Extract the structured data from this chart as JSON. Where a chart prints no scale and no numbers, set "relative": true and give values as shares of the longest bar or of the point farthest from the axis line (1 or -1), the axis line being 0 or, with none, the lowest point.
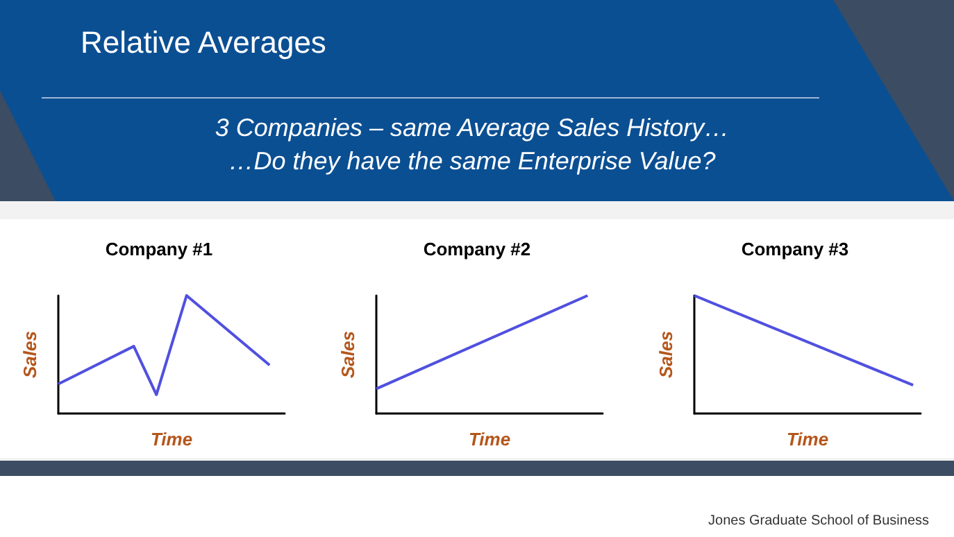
{
  "chart_data": [
    {
      "type": "other",
      "title": "Relative Averages",
      "annotations": [
        "3 Companies – same Average Sales History…",
        "…Do they have the same Enterprise Value?",
        "Jones Graduate School of Business"
      ]
    },
    {
      "type": "line",
      "title": "Company #1",
      "xlabel": "Time",
      "ylabel": "Sales",
      "relative": true,
      "categories": [
        null,
        null,
        null,
        null,
        null,
        null,
        null,
        null,
        null,
        null,
        null,
        null,
        null,
        null,
        null,
        null,
        null,
        null,
        null,
        null,
        null,
        null,
        null,
        null,
        null,
        null,
        null,
        null,
        null,
        null,
        null
      ],
      "series": [
        {
          "color": "#5050e0",
          "values": [
            0.25,
            null,
            null,
            null,
            null,
            null,
            null,
            null,
            null,
            null,
            0.57,
            null,
            null,
            0.16,
            null,
            null,
            null,
            1,
            null,
            null,
            null,
            null,
            null,
            null,
            null,
            null,
            null,
            null,
            0.41,
            null,
            null
          ]
        }
      ],
      "grid": false,
      "marker": "none",
      "line_style": "solid"
    },
    {
      "type": "line",
      "title": "Company #2",
      "xlabel": "Time",
      "ylabel": "Sales",
      "relative": true,
      "categories": [
        null,
        null,
        null,
        null,
        null,
        null,
        null,
        null,
        null,
        null,
        null,
        null,
        null,
        null,
        null,
        null,
        null,
        null,
        null,
        null,
        null,
        null,
        null,
        null,
        null,
        null,
        null,
        null,
        null,
        null,
        null
      ],
      "series": [
        {
          "color": "#5050e0",
          "values": [
            0.21,
            null,
            null,
            null,
            null,
            null,
            null,
            null,
            null,
            null,
            null,
            null,
            null,
            null,
            null,
            null,
            null,
            null,
            null,
            null,
            null,
            null,
            null,
            null,
            null,
            null,
            null,
            null,
            1,
            null,
            null
          ]
        }
      ],
      "grid": false,
      "marker": "none",
      "line_style": "solid"
    },
    {
      "type": "line",
      "title": "Company #3",
      "xlabel": "Time",
      "ylabel": "Sales",
      "relative": true,
      "categories": [
        null,
        null,
        null,
        null,
        null,
        null,
        null,
        null,
        null,
        null,
        null,
        null,
        null,
        null,
        null,
        null,
        null,
        null,
        null,
        null,
        null,
        null,
        null,
        null,
        null,
        null,
        null,
        null,
        null,
        null,
        null
      ],
      "series": [
        {
          "color": "#5050e0",
          "values": [
            1,
            null,
            null,
            null,
            null,
            null,
            null,
            null,
            null,
            null,
            null,
            null,
            null,
            null,
            null,
            null,
            null,
            null,
            null,
            null,
            null,
            null,
            null,
            null,
            null,
            null,
            null,
            null,
            null,
            0.24,
            null
          ]
        }
      ],
      "grid": false,
      "marker": "none",
      "line_style": "solid"
    }
  ]
}
